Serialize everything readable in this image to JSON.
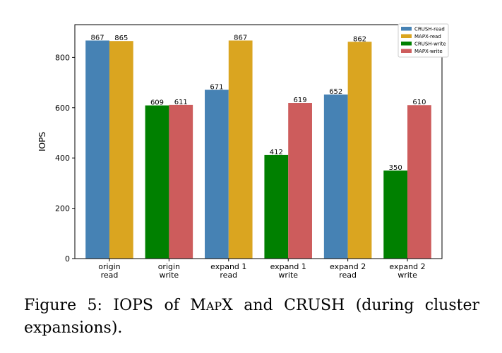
{
  "chart_data": {
    "type": "bar",
    "title": "",
    "xlabel": "",
    "ylabel": "IOPS",
    "ylim": [
      0,
      930
    ],
    "yticks": [
      0,
      200,
      400,
      600,
      800
    ],
    "grid": false,
    "legend_position": "top-right",
    "categories": [
      [
        "origin",
        "read"
      ],
      [
        "origin",
        "write"
      ],
      [
        "expand 1",
        "read"
      ],
      [
        "expand 1",
        "write"
      ],
      [
        "expand 2",
        "read"
      ],
      [
        "expand 2",
        "write"
      ]
    ],
    "groups": [
      {
        "bars": [
          {
            "series": "CRUSH-read",
            "value": 867
          },
          {
            "series": "MAPX-read",
            "value": 865
          }
        ]
      },
      {
        "bars": [
          {
            "series": "CRUSH-write",
            "value": 609
          },
          {
            "series": "MAPX-write",
            "value": 611
          }
        ]
      },
      {
        "bars": [
          {
            "series": "CRUSH-read",
            "value": 671
          },
          {
            "series": "MAPX-read",
            "value": 867
          }
        ]
      },
      {
        "bars": [
          {
            "series": "CRUSH-write",
            "value": 412
          },
          {
            "series": "MAPX-write",
            "value": 619
          }
        ]
      },
      {
        "bars": [
          {
            "series": "CRUSH-read",
            "value": 652
          },
          {
            "series": "MAPX-read",
            "value": 862
          }
        ]
      },
      {
        "bars": [
          {
            "series": "CRUSH-write",
            "value": 350
          },
          {
            "series": "MAPX-write",
            "value": 610
          }
        ]
      }
    ],
    "series": [
      {
        "name": "CRUSH-read",
        "color": "#4682b4"
      },
      {
        "name": "MAPX-read",
        "color": "#daa520"
      },
      {
        "name": "CRUSH-write",
        "color": "#008000"
      },
      {
        "name": "MAPX-write",
        "color": "#cd5c5c"
      }
    ]
  },
  "caption": {
    "prefix": "Figure 5:  IOPS of ",
    "mapx_first": "M",
    "mapx_small": "AP",
    "mapx_last": "X",
    "suffix": " and CRUSH (during cluster expansions)."
  }
}
